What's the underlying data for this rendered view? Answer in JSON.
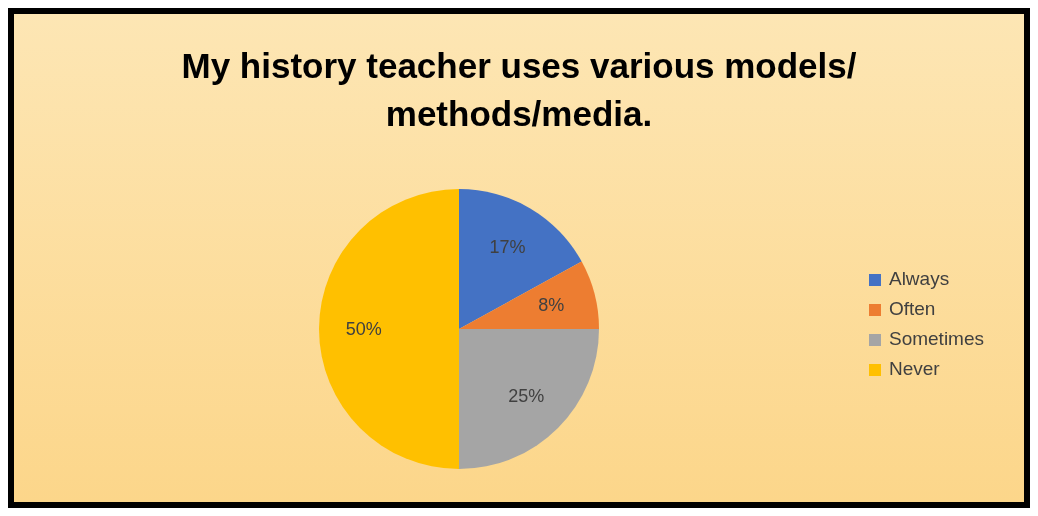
{
  "chart_data": {
    "type": "pie",
    "title": "My history teacher uses various models/ methods/media.",
    "categories": [
      "Always",
      "Often",
      "Sometimes",
      "Never"
    ],
    "values": [
      17,
      8,
      25,
      50
    ],
    "colors": [
      "#4472c4",
      "#ed7d31",
      "#a5a5a5",
      "#ffc000"
    ],
    "value_labels": [
      "17%",
      "8%",
      "25%",
      "50%"
    ],
    "legend": "right"
  }
}
